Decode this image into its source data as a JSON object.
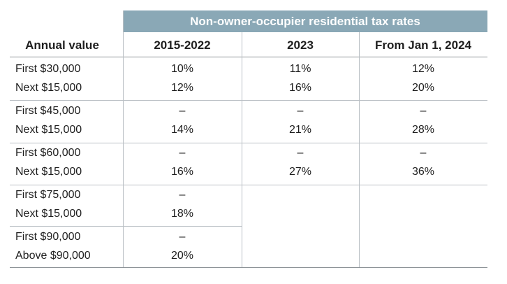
{
  "table": {
    "banner_title": "Non-owner-occupier residential tax rates",
    "header": {
      "row_label": "Annual value",
      "col1": "2015-2022",
      "col2": "2023",
      "col3": "From Jan 1, 2024"
    },
    "groups": [
      {
        "labels": [
          "First $30,000",
          "Next $15,000"
        ],
        "col1": [
          "10%",
          "12%"
        ],
        "col2": [
          "11%",
          "16%"
        ],
        "col3": [
          "12%",
          "20%"
        ]
      },
      {
        "labels": [
          "First $45,000",
          "Next $15,000"
        ],
        "col1": [
          "–",
          "14%"
        ],
        "col2": [
          "–",
          "21%"
        ],
        "col3": [
          "–",
          "28%"
        ]
      },
      {
        "labels": [
          "First $60,000",
          "Next $15,000"
        ],
        "col1": [
          "–",
          "16%"
        ],
        "col2": [
          "–",
          "27%"
        ],
        "col3": [
          "–",
          "36%"
        ]
      },
      {
        "labels": [
          "First $75,000",
          "Next $15,000"
        ],
        "col1": [
          "–",
          "18%"
        ]
      },
      {
        "labels": [
          "First $90,000",
          "Above $90,000"
        ],
        "col1": [
          "–",
          "20%"
        ]
      }
    ]
  }
}
